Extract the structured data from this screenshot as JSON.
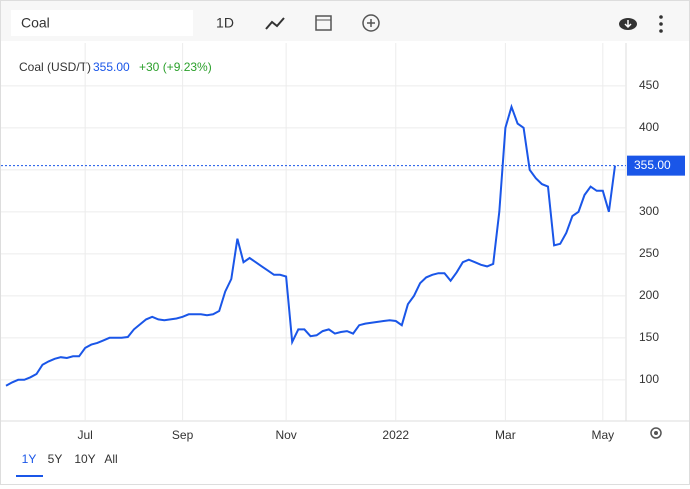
{
  "toolbar": {
    "search": "Coal",
    "interval": "1D",
    "ranges": [
      "1Y",
      "5Y",
      "10Y",
      "All"
    ]
  },
  "chart_data": {
    "type": "line",
    "title": "Coal (USD/T)",
    "price": "355.00",
    "change": "+30 (+9.23%)",
    "color": "#1a56e8",
    "change_color": "#2ca02c",
    "grid": true,
    "categories": [
      null,
      null,
      null,
      null,
      null,
      null,
      null,
      null,
      null,
      null,
      null,
      null,
      null,
      "Jul",
      null,
      null,
      null,
      null,
      null,
      null,
      null,
      null,
      null,
      null,
      null,
      null,
      null,
      null,
      null,
      "Sep",
      null,
      null,
      null,
      null,
      null,
      null,
      null,
      null,
      null,
      null,
      null,
      null,
      null,
      null,
      null,
      null,
      "Nov",
      null,
      null,
      null,
      null,
      null,
      null,
      null,
      null,
      null,
      null,
      null,
      null,
      null,
      null,
      null,
      null,
      null,
      "2022",
      null,
      null,
      null,
      null,
      null,
      null,
      null,
      null,
      null,
      null,
      null,
      null,
      null,
      null,
      null,
      null,
      null,
      "Mar",
      null,
      null,
      null,
      null,
      null,
      null,
      null,
      null,
      null,
      null,
      null,
      null,
      null,
      null,
      null,
      "May",
      null,
      null
    ],
    "values": [
      93,
      97,
      100,
      100,
      103,
      107,
      118,
      122,
      125,
      127,
      126,
      128,
      128,
      138,
      142,
      144,
      147,
      150,
      150,
      150,
      151,
      160,
      166,
      172,
      175,
      172,
      171,
      172,
      173,
      175,
      178,
      178,
      178,
      177,
      178,
      182,
      205,
      220,
      268,
      240,
      245,
      240,
      235,
      230,
      225,
      225,
      223,
      145,
      160,
      160,
      152,
      153,
      158,
      160,
      155,
      157,
      158,
      155,
      165,
      167,
      168,
      169,
      170,
      171,
      170,
      165,
      190,
      200,
      215,
      222,
      225,
      227,
      227,
      218,
      228,
      240,
      243,
      240,
      237,
      235,
      238,
      300,
      400,
      425,
      405,
      400,
      350,
      340,
      333,
      330,
      260,
      262,
      275,
      295,
      300,
      320,
      330,
      325,
      325,
      300,
      355
    ],
    "ylim": [
      51,
      501
    ],
    "yticks": [
      100,
      150,
      200,
      250,
      300,
      350,
      400,
      450
    ]
  }
}
